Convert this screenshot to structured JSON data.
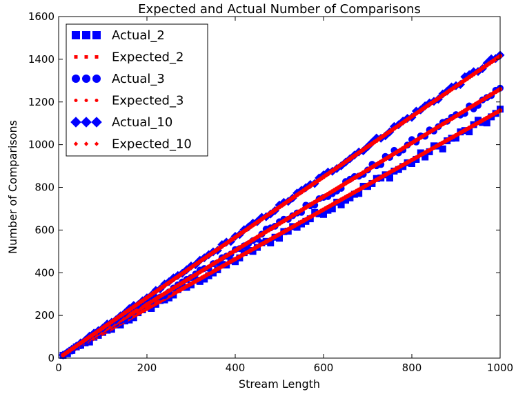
{
  "chart_data": {
    "type": "scatter",
    "title": "Expected and Actual Number of Comparisons",
    "xlabel": "Stream Length",
    "ylabel": "Number of Comparisons",
    "xlim": [
      0,
      1000
    ],
    "ylim": [
      0,
      1600
    ],
    "x_ticks": [
      0,
      200,
      400,
      600,
      800,
      1000
    ],
    "y_ticks": [
      0,
      200,
      400,
      600,
      800,
      1000,
      1200,
      1400,
      1600
    ],
    "grid": false,
    "legend_position": "top-left",
    "colors": {
      "actual": "#0000ff",
      "expected": "#ff0000"
    },
    "series": [
      {
        "name": "Actual_2",
        "kind": "actual",
        "marker": "square",
        "slope": 1.15,
        "noise": 22,
        "x_start": 10,
        "x_end": 1000,
        "x_step": 10
      },
      {
        "name": "Expected_2",
        "kind": "expected",
        "marker": "dot-square",
        "slope": 1.16,
        "x_start": 10,
        "x_end": 1000,
        "x_step": 5
      },
      {
        "name": "Actual_3",
        "kind": "actual",
        "marker": "circle",
        "slope": 1.26,
        "noise": 18,
        "x_start": 10,
        "x_end": 1000,
        "x_step": 10
      },
      {
        "name": "Expected_3",
        "kind": "expected",
        "marker": "dot-circle",
        "slope": 1.26,
        "x_start": 10,
        "x_end": 1000,
        "x_step": 5
      },
      {
        "name": "Actual_10",
        "kind": "actual",
        "marker": "diamond",
        "slope": 1.42,
        "noise": 12,
        "x_start": 10,
        "x_end": 1000,
        "x_step": 10
      },
      {
        "name": "Expected_10",
        "kind": "expected",
        "marker": "dot-diamond",
        "slope": 1.415,
        "x_start": 10,
        "x_end": 1000,
        "x_step": 5
      }
    ]
  }
}
